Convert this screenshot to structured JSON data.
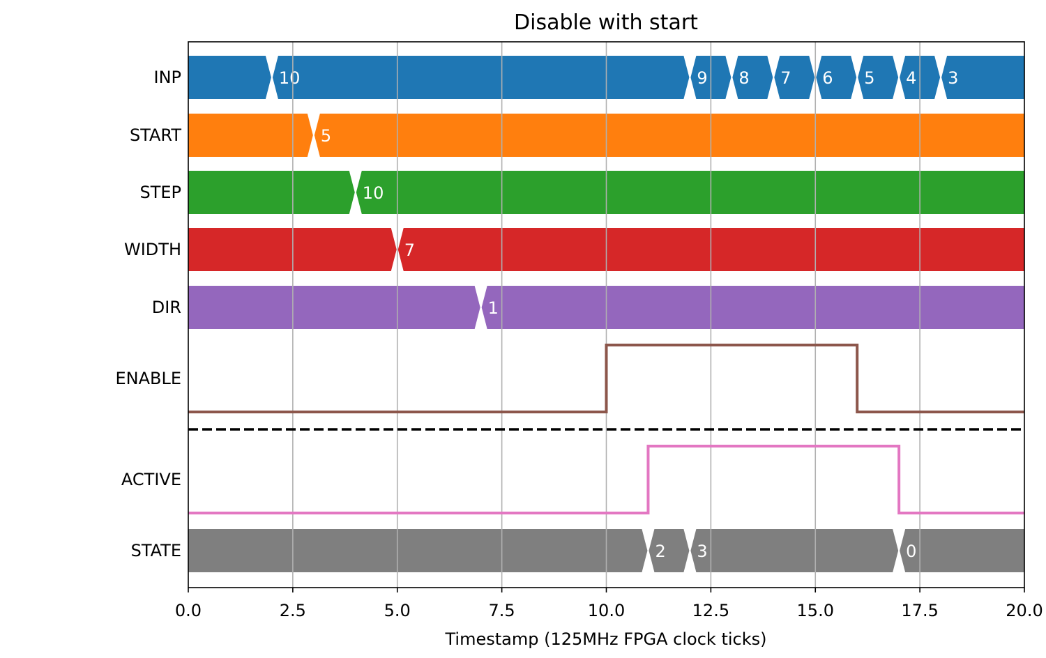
{
  "chart_data": {
    "type": "timing-diagram",
    "title": "Disable with start",
    "xlabel": "Timestamp (125MHz FPGA clock ticks)",
    "xlim": [
      0,
      20
    ],
    "xticks": [
      "0.0",
      "2.5",
      "5.0",
      "7.5",
      "10.0",
      "12.5",
      "15.0",
      "17.5",
      "20.0"
    ],
    "grid": true,
    "signals": [
      {
        "name": "INP",
        "kind": "bus",
        "color": "#1f77b4",
        "transitions": [
          2,
          12,
          13,
          14,
          15,
          16,
          17,
          18
        ],
        "labels": [
          {
            "x": 2,
            "text": "10"
          },
          {
            "x": 12,
            "text": "9"
          },
          {
            "x": 13,
            "text": "8"
          },
          {
            "x": 14,
            "text": "7"
          },
          {
            "x": 15,
            "text": "6"
          },
          {
            "x": 16,
            "text": "5"
          },
          {
            "x": 17,
            "text": "4"
          },
          {
            "x": 18,
            "text": "3"
          }
        ]
      },
      {
        "name": "START",
        "kind": "bus",
        "color": "#ff7f0e",
        "transitions": [
          3
        ],
        "labels": [
          {
            "x": 3,
            "text": "5"
          }
        ]
      },
      {
        "name": "STEP",
        "kind": "bus",
        "color": "#2ca02c",
        "transitions": [
          4
        ],
        "labels": [
          {
            "x": 4,
            "text": "10"
          }
        ]
      },
      {
        "name": "WIDTH",
        "kind": "bus",
        "color": "#d62728",
        "transitions": [
          5
        ],
        "labels": [
          {
            "x": 5,
            "text": "7"
          }
        ]
      },
      {
        "name": "DIR",
        "kind": "bus",
        "color": "#9467bd",
        "transitions": [
          7
        ],
        "labels": [
          {
            "x": 7,
            "text": "1"
          }
        ]
      },
      {
        "name": "ENABLE",
        "kind": "bit",
        "color": "#8c564b",
        "steps": [
          {
            "x": 0,
            "v": 0
          },
          {
            "x": 10,
            "v": 1
          },
          {
            "x": 16,
            "v": 0
          }
        ]
      },
      {
        "name": "ACTIVE",
        "kind": "bit",
        "color": "#e377c2",
        "steps": [
          {
            "x": 0,
            "v": 0
          },
          {
            "x": 11,
            "v": 1
          },
          {
            "x": 17,
            "v": 0
          }
        ]
      },
      {
        "name": "STATE",
        "kind": "bus",
        "color": "#7f7f7f",
        "transitions": [
          11,
          12,
          17
        ],
        "labels": [
          {
            "x": 11,
            "text": "2"
          },
          {
            "x": 12,
            "text": "3"
          },
          {
            "x": 17,
            "text": "0"
          }
        ]
      }
    ],
    "separator_after": "ENABLE"
  }
}
